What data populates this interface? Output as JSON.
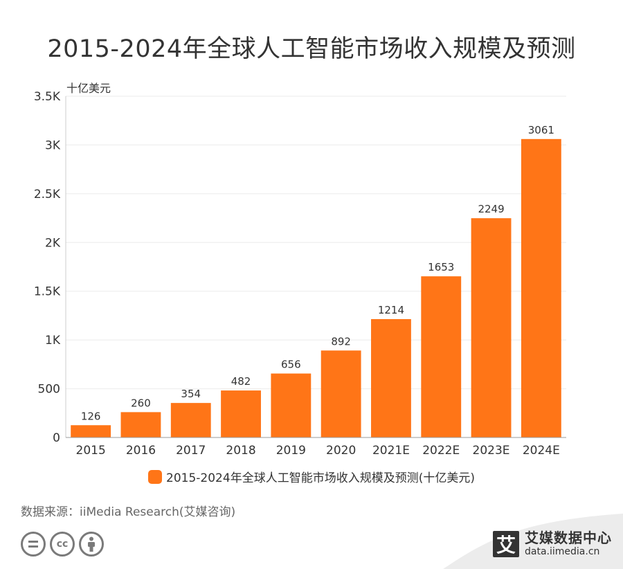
{
  "title": "2015-2024年全球人工智能市场收入规模及预测",
  "unit_label": "十亿美元",
  "legend_label": "2015-2024年全球人工智能市场收入规模及预测(十亿美元)",
  "source": "数据来源：iiMedia Research(艾媒咨询)",
  "logo": {
    "mark": "艾",
    "name": "艾媒数据中心",
    "url": "data.iimedia.cn"
  },
  "license_icons": [
    "cc-nd-icon",
    "cc-icon",
    "cc-by-icon"
  ],
  "chart_data": {
    "type": "bar",
    "title": "2015-2024年全球人工智能市场收入规模及预测",
    "ylabel": "十亿美元",
    "ylim": [
      0,
      3500
    ],
    "yticks": [
      0,
      500,
      1000,
      1500,
      2000,
      2500,
      3000,
      3500
    ],
    "ytick_labels": [
      "0",
      "500",
      "1K",
      "1.5K",
      "2K",
      "2.5K",
      "3K",
      "3.5K"
    ],
    "categories": [
      "2015",
      "2016",
      "2017",
      "2018",
      "2019",
      "2020",
      "2021E",
      "2022E",
      "2023E",
      "2024E"
    ],
    "series": [
      {
        "name": "2015-2024年全球人工智能市场收入规模及预测(十亿美元)",
        "values": [
          126,
          260,
          354,
          482,
          656,
          892,
          1214,
          1653,
          2249,
          3061
        ]
      }
    ],
    "grid": true,
    "legend_position": "bottom",
    "bar_color": "#ff7517"
  }
}
